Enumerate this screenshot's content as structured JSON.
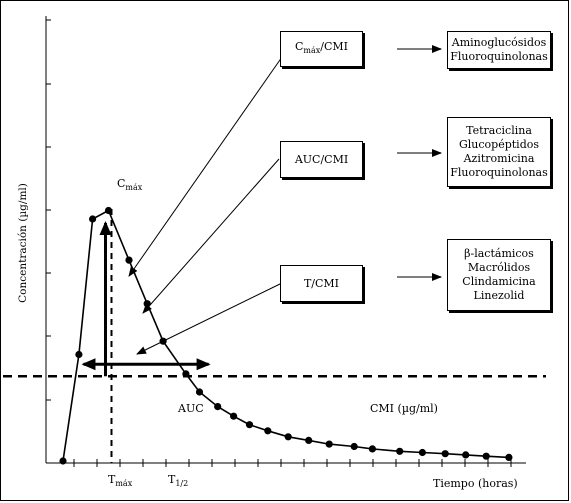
{
  "y_axis_label": "Concentración (µg/ml)",
  "x_axis_label": "Tiempo (horas)",
  "peak_label": {
    "main": "C",
    "sub": "máx"
  },
  "tmax_label": {
    "main": "T",
    "sub": "máx"
  },
  "thalf_label": {
    "main": "T",
    "sub": "1/2"
  },
  "auc_label": "AUC",
  "cmi_label": "CMI (µg/ml)",
  "pkpd_boxes": [
    {
      "main": "C",
      "sub": "máx",
      "rest": "/CMI"
    },
    {
      "main": "AUC/CMI",
      "sub": "",
      "rest": ""
    },
    {
      "main": "T/CMI",
      "sub": "",
      "rest": ""
    }
  ],
  "drug_groups": [
    [
      "Aminoglucósidos",
      "Fluoroquinolonas"
    ],
    [
      "Tetraciclina",
      "Glucopéptidos",
      "Azitromicina",
      "Fluoroquinolonas"
    ],
    [
      "β-lactámicos",
      "Macrólidos",
      "Clindamicina",
      "Linezolid"
    ]
  ],
  "concentration_curve": {
    "points": [
      [
        0.0,
        0.0
      ],
      [
        0.35,
        0.88
      ],
      [
        0.65,
        2.0
      ],
      [
        1.0,
        2.07
      ],
      [
        1.45,
        1.66
      ],
      [
        1.85,
        1.3
      ],
      [
        2.2,
        0.99
      ],
      [
        2.7,
        0.72
      ],
      [
        3.0,
        0.57
      ],
      [
        3.4,
        0.45
      ],
      [
        3.75,
        0.37
      ],
      [
        4.1,
        0.3
      ],
      [
        4.5,
        0.25
      ],
      [
        4.95,
        0.2
      ],
      [
        5.4,
        0.17
      ],
      [
        5.85,
        0.14
      ],
      [
        6.4,
        0.12
      ],
      [
        6.8,
        0.1
      ],
      [
        7.4,
        0.08
      ],
      [
        7.9,
        0.07
      ],
      [
        8.4,
        0.06
      ],
      [
        8.85,
        0.05
      ],
      [
        9.3,
        0.04
      ],
      [
        9.8,
        0.03
      ]
    ],
    "mic_level": 0.7,
    "t_max": 1.0
  }
}
